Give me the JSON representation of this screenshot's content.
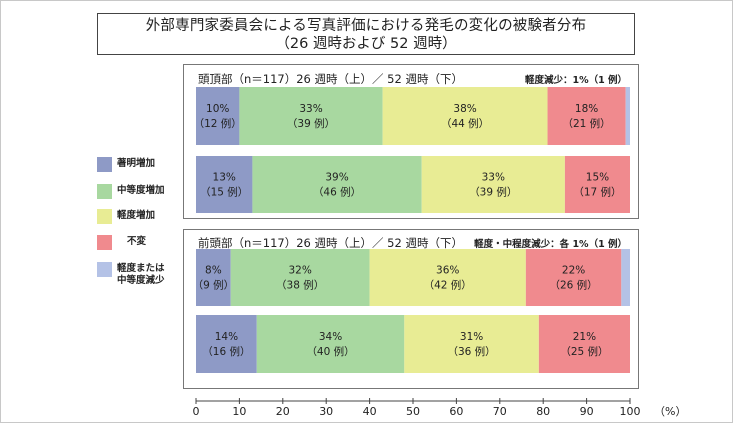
{
  "title": {
    "line1": "外部専門家委員会による写真評価における発毛の変化の被験者分布",
    "line2": "（26 週時および 52 週時）"
  },
  "legend": [
    {
      "label": "著明増加",
      "color": "#8e9ac6"
    },
    {
      "label": "中等度増加",
      "color": "#a8d8a0"
    },
    {
      "label": "軽度増加",
      "color": "#e8ec94"
    },
    {
      "label": "不変",
      "color": "#f08a8e"
    },
    {
      "label": "軽度または\n中等度減少",
      "color": "#b4c2e6"
    }
  ],
  "panels": [
    {
      "label": "頭頂部（n＝117）26 週時（上）／ 52 週時（下）",
      "note": "軽度減少：1%（1 例）"
    },
    {
      "label": "前頭部（n＝117）26 週時（上）／ 52 週時（下）",
      "note": "軽度・中程度減少：各 1%（1 例）"
    }
  ],
  "axis": {
    "ticks": [
      "0",
      "10",
      "20",
      "30",
      "40",
      "50",
      "60",
      "70",
      "80",
      "90",
      "100"
    ],
    "unit": "（%）"
  },
  "chart_data": {
    "type": "bar",
    "orientation": "horizontal",
    "stacked": true,
    "xlim": [
      0,
      100
    ],
    "series_names": [
      "著明増加",
      "中等度増加",
      "軽度増加",
      "不変",
      "軽度または中等度減少"
    ],
    "bars": [
      {
        "group": "頭頂部",
        "period": "26 週時",
        "values": [
          10,
          33,
          38,
          18,
          1
        ],
        "labels": [
          "10%",
          "33%",
          "38%",
          "18%",
          ""
        ],
        "counts": [
          "（12 例）",
          "（39 例）",
          "（44 例）",
          "（21 例）",
          ""
        ]
      },
      {
        "group": "頭頂部",
        "period": "52 週時",
        "values": [
          13,
          39,
          33,
          15,
          0
        ],
        "labels": [
          "13%",
          "39%",
          "33%",
          "15%",
          ""
        ],
        "counts": [
          "（15 例）",
          "（46 例）",
          "（39 例）",
          "（17 例）",
          ""
        ]
      },
      {
        "group": "前頭部",
        "period": "26 週時",
        "values": [
          8,
          32,
          36,
          22,
          2
        ],
        "labels": [
          "8%",
          "32%",
          "36%",
          "22%",
          ""
        ],
        "counts": [
          "（9 例）",
          "（38 例）",
          "（42 例）",
          "（26 例）",
          ""
        ]
      },
      {
        "group": "前頭部",
        "period": "52 週時",
        "values": [
          14,
          34,
          31,
          21,
          0
        ],
        "labels": [
          "14%",
          "34%",
          "31%",
          "21%",
          ""
        ],
        "counts": [
          "（16 例）",
          "（40 例）",
          "（36 例）",
          "（25 例）",
          ""
        ]
      }
    ]
  }
}
